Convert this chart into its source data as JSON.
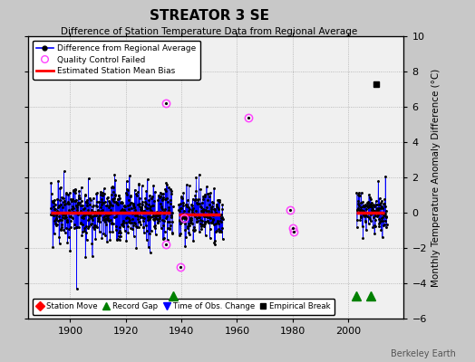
{
  "title": "STREATOR 3 SE",
  "subtitle": "Difference of Station Temperature Data from Regional Average",
  "ylabel": "Monthly Temperature Anomaly Difference (°C)",
  "ylim": [
    -6,
    10
  ],
  "yticks": [
    -6,
    -4,
    -2,
    0,
    2,
    4,
    6,
    8,
    10
  ],
  "xlim": [
    1885,
    2020
  ],
  "xticks": [
    1900,
    1920,
    1940,
    1960,
    1980,
    2000
  ],
  "seg1_start": 1893,
  "seg1_end": 1936,
  "seg1_bias": 0.0,
  "seg2_start": 1939,
  "seg2_end": 1954,
  "seg2_bias": -0.1,
  "seg3_start": 2003,
  "seg3_end": 2013,
  "seg3_bias": 0.0,
  "record_gaps": [
    1937,
    2003,
    2008
  ],
  "qc_failed": [
    [
      1934.5,
      6.2
    ],
    [
      1934.5,
      -1.8
    ],
    [
      1939.5,
      -3.1
    ],
    [
      1941.0,
      -0.3
    ],
    [
      1964.0,
      5.4
    ],
    [
      1979.0,
      0.15
    ],
    [
      1980.0,
      -0.85
    ],
    [
      1980.5,
      -1.1
    ]
  ],
  "empirical_break_x": 2010,
  "empirical_break_y": 7.3,
  "watermark": "Berkeley Earth",
  "fig_facecolor": "#c8c8c8",
  "ax_facecolor": "#f0f0f0"
}
